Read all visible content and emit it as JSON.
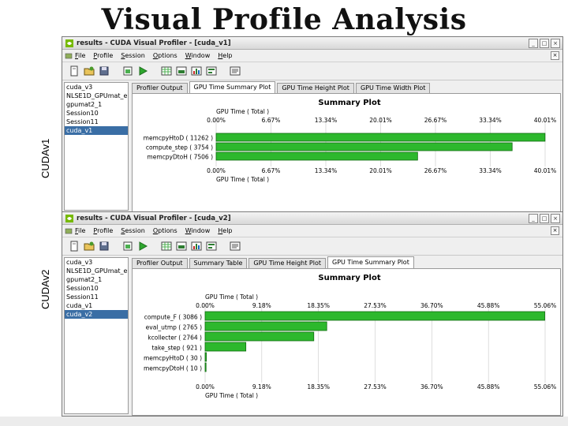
{
  "slide_title": "Visual Profile Analysis",
  "colors": {
    "bar_fill": "#2db82d",
    "bar_stroke": "#0d6b0d",
    "selected": "#3a6ea5",
    "gridline": "#c8c8c8"
  },
  "window1": {
    "side_label": "CUDAv1",
    "title": "results - CUDA Visual Profiler - [cuda_v1]",
    "menus": [
      "File",
      "Profile",
      "Session",
      "Options",
      "Window",
      "Help"
    ],
    "toolbar_icons": [
      "new-session-icon",
      "open-icon",
      "save-icon",
      "profile-icon",
      "run-icon",
      "table-icon",
      "plot-icon",
      "chart-icon",
      "bar-icon",
      "details-icon"
    ],
    "sessions": [
      "cuda_v3",
      "NLSE1D_GPUmat_en",
      "gpumat2_1",
      "Session10",
      "Session11",
      "cuda_v1"
    ],
    "selected_index": 5,
    "tabs": [
      "Profiler Output",
      "GPU Time Summary Plot",
      "GPU Time Height Plot",
      "GPU Time Width Plot"
    ],
    "active_tab": 1
  },
  "window2": {
    "side_label": "CUDAv2",
    "title": "results - CUDA Visual Profiler - [cuda_v2]",
    "menus": [
      "File",
      "Profile",
      "Session",
      "Options",
      "Window",
      "Help"
    ],
    "toolbar_icons": [
      "new-session-icon",
      "open-icon",
      "save-icon",
      "profile-icon",
      "run-icon",
      "table-icon",
      "plot-icon",
      "chart-icon",
      "bar-icon",
      "details-icon"
    ],
    "sessions": [
      "cuda_v3",
      "NLSE1D_GPUmat_en",
      "gpumat2_1",
      "Session10",
      "Session11",
      "cuda_v1",
      "cuda_v2"
    ],
    "selected_index": 6,
    "tabs": [
      "Profiler Output",
      "Summary Table",
      "GPU Time Height Plot",
      "GPU Time Summary Plot"
    ],
    "active_tab": 3
  },
  "chart_data": [
    {
      "type": "bar",
      "orientation": "horizontal",
      "title": "Summary Plot",
      "xlabel": "GPU Time ( Total )",
      "xticks": [
        "0.00%",
        "6.67%",
        "13.34%",
        "20.01%",
        "26.67%",
        "33.34%",
        "40.01%"
      ],
      "xlim": [
        0,
        40.01
      ],
      "categories": [
        "memcpyHtoD ( 11262 )",
        "compute_step ( 3754 )",
        "memcpyDtoH ( 7506 )"
      ],
      "values": [
        40.0,
        36.0,
        24.5
      ]
    },
    {
      "type": "bar",
      "orientation": "horizontal",
      "title": "Summary Plot",
      "xlabel": "GPU Time ( Total )",
      "xticks": [
        "0.00%",
        "9.18%",
        "18.35%",
        "27.53%",
        "36.70%",
        "45.88%",
        "55.06%"
      ],
      "xlim": [
        0,
        55.06
      ],
      "categories": [
        "compute_F ( 3086 )",
        "eval_utmp ( 2765 )",
        "kcollecter ( 2764 )",
        "take_step ( 921 )",
        "memcpyHtoD ( 30 )",
        "memcpyDtoH ( 10 )"
      ],
      "values": [
        55.0,
        19.7,
        17.6,
        6.6,
        0.2,
        0.1
      ]
    }
  ]
}
